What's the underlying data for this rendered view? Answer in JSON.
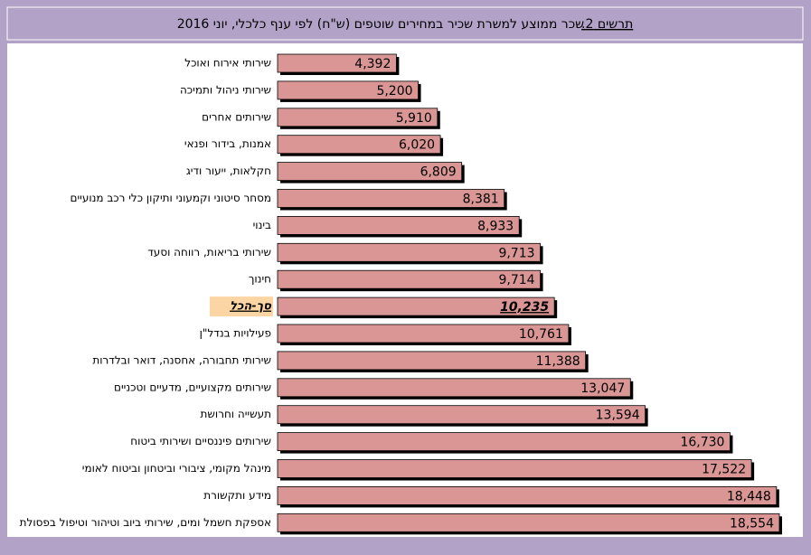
{
  "chart_data": {
    "type": "barh",
    "title_label": "תרשים 2.",
    "title": "שכר ממוצע למשרת שכיר במחירים שוטפים (ש\"ח) לפי ענף כלכלי, יוני 2016",
    "categories": [
      "שירותי אירוח ואוכל",
      "שירותי ניהול ותמיכה",
      "שירותים אחרים",
      "אמנות, בידור ופנאי",
      "חקלאות, ייעור ודיג",
      "מסחר סיטוני וקמעוני ותיקון כלי רכב מנועיים",
      "בינוי",
      "שירותי בריאות, רווחה וסעד",
      "חינוך",
      "סך-הכל",
      "פעילויות בנדל\"ן",
      "שירותי תחבורה, אחסנה, דואר ובלדרות",
      "שירותים מקצועיים, מדעיים וטכניים",
      "תעשייה וחרושת",
      "שירותים פיננסיים ושירותי ביטוח",
      "מינהל מקומי, ציבורי וביטחון וביטוח לאומי",
      "מידע ותקשורת",
      "אספקת חשמל ומים, שירותי ביוב וטיהור וטיפול בפסולת"
    ],
    "values": [
      4392,
      5200,
      5910,
      6020,
      6809,
      8381,
      8933,
      9713,
      9714,
      10235,
      10761,
      11388,
      13047,
      13594,
      16730,
      17522,
      18448,
      18554
    ],
    "value_labels": [
      "4,392",
      "5,200",
      "5,910",
      "6,020",
      "6,809",
      "8,381",
      "8,933",
      "9,713",
      "9,714",
      "10,235",
      "10,761",
      "11,388",
      "13,047",
      "13,594",
      "16,730",
      "17,522",
      "18,448",
      "18,554"
    ],
    "color": "#d99694",
    "highlight_category": "סך-הכל",
    "highlight_color": "#fcd5a4"
  }
}
